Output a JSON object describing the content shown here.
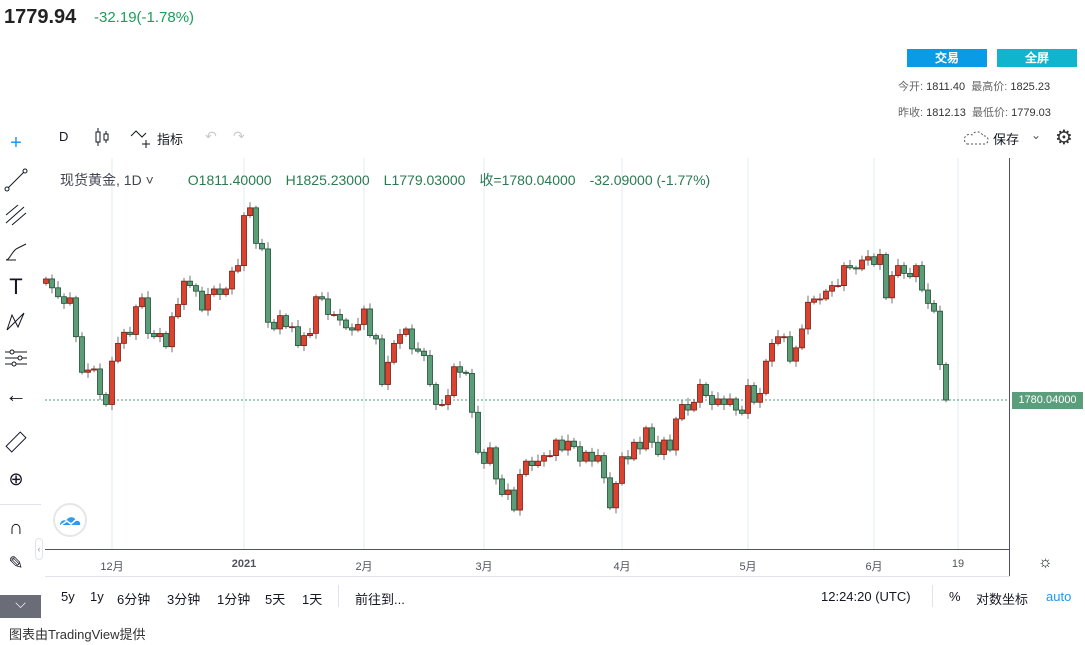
{
  "header": {
    "price": "1779.94",
    "change": "-32.19(-1.78%)",
    "trade_btn": "交易",
    "fullscreen_btn": "全屏",
    "open_label": "今开:",
    "open": "1811.40",
    "high_label": "最高价:",
    "high": "1825.23",
    "prev_label": "昨收:",
    "prev": "1812.13",
    "low_label": "最低价:",
    "low": "1779.03"
  },
  "toolbar": {
    "interval": "D",
    "indicators": "指标",
    "save": "保存"
  },
  "legend": {
    "symbol": "现货黄金, 1D",
    "open": "O1811.40000",
    "high": "H1825.23000",
    "low": "L1779.03000",
    "close": "收=1780.04000",
    "change": "-32.09000 (-1.77%)"
  },
  "price_label": "1780.04000",
  "colors": {
    "up": "#d9432f",
    "up_border": "#7a1d14",
    "down": "#5a9e78",
    "down_border": "#1f4d35",
    "accent_blue": "#0a9be6",
    "accent_teal": "#10b4cc"
  },
  "bottom": {
    "ranges": [
      "5y",
      "1y",
      "6分钟",
      "3分钟",
      "1分钟",
      "5天",
      "1天"
    ],
    "goto": "前往到...",
    "time": "12:24:20 (UTC)",
    "percent": "%",
    "log": "对数坐标",
    "auto": "auto"
  },
  "footer": "图表由TradingView提供",
  "chart_data": {
    "type": "candlestick",
    "title": "现货黄金, 1D",
    "current_price": 1780.04,
    "ylim": [
      1640,
      2000
    ],
    "x_ticks": [
      {
        "label": "12月",
        "index": 11
      },
      {
        "label": "2021",
        "index": 33
      },
      {
        "label": "2月",
        "index": 53
      },
      {
        "label": "3月",
        "index": 73
      },
      {
        "label": "4月",
        "index": 96
      },
      {
        "label": "5月",
        "index": 117
      },
      {
        "label": "6月",
        "index": 138
      },
      {
        "label": "19",
        "index": 152
      }
    ],
    "first_open": 1885,
    "closes": [
      1889,
      1881,
      1873,
      1867,
      1872,
      1837,
      1805,
      1807,
      1808,
      1785,
      1776,
      1815,
      1831,
      1841,
      1839,
      1864,
      1872,
      1840,
      1837,
      1840,
      1828,
      1855,
      1866,
      1887,
      1883,
      1878,
      1861,
      1875,
      1880,
      1875,
      1880,
      1896,
      1901,
      1946,
      1953,
      1921,
      1916,
      1850,
      1844,
      1856,
      1846,
      1846,
      1829,
      1838,
      1840,
      1873,
      1871,
      1857,
      1857,
      1852,
      1845,
      1843,
      1848,
      1862,
      1838,
      1835,
      1794,
      1814,
      1831,
      1839,
      1844,
      1826,
      1824,
      1820,
      1794,
      1776,
      1776,
      1784,
      1810,
      1805,
      1804,
      1769,
      1733,
      1723,
      1737,
      1709,
      1695,
      1699,
      1681,
      1713,
      1725,
      1721,
      1725,
      1730,
      1730,
      1744,
      1735,
      1743,
      1738,
      1725,
      1733,
      1725,
      1730,
      1710,
      1683,
      1705,
      1729,
      1727,
      1742,
      1736,
      1755,
      1742,
      1731,
      1744,
      1735,
      1763,
      1776,
      1771,
      1778,
      1794,
      1784,
      1776,
      1781,
      1776,
      1781,
      1771,
      1768,
      1793,
      1778,
      1786,
      1815,
      1831,
      1837,
      1837,
      1815,
      1827,
      1844,
      1868,
      1871,
      1871,
      1878,
      1883,
      1883,
      1901,
      1899,
      1898,
      1906,
      1909,
      1902,
      1911,
      1872,
      1892,
      1901,
      1894,
      1891,
      1901,
      1879,
      1867,
      1860,
      1812,
      1780
    ]
  }
}
